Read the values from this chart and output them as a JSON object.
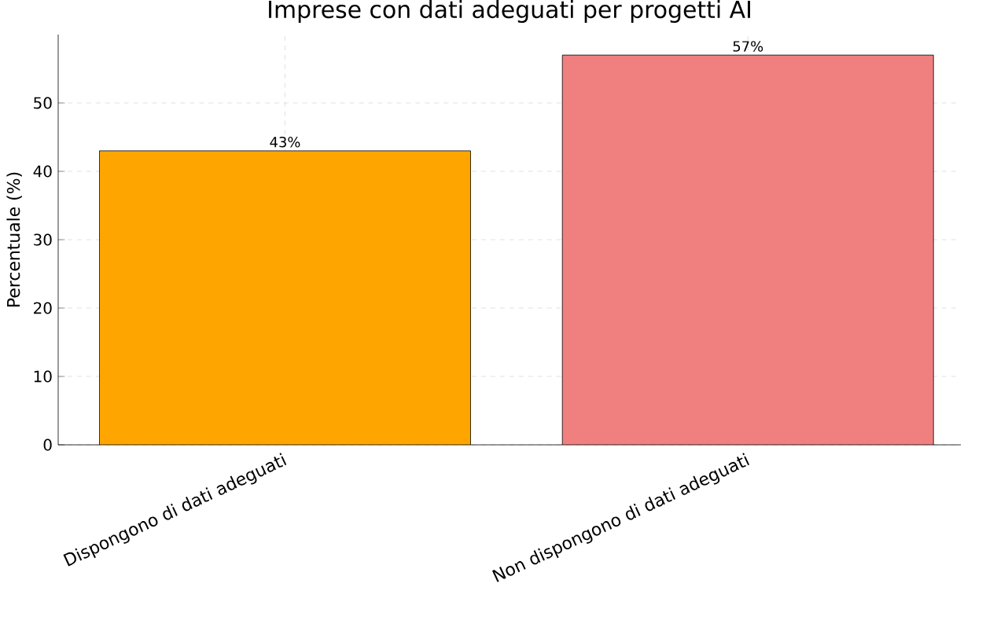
{
  "chart_data": {
    "type": "bar",
    "title": "Imprese con dati adeguati per progetti AI",
    "ylabel": "Percentuale (%)",
    "categories": [
      "Dispongono di dati adeguati",
      "Non dispongono di dati adeguati"
    ],
    "values": [
      43,
      57
    ],
    "colors": [
      "#ffa500",
      "#f08080"
    ],
    "value_labels": [
      "43%",
      "57%"
    ],
    "ylim": [
      0,
      60
    ],
    "yticks": [
      0,
      10,
      20,
      30,
      40,
      50
    ],
    "grid": true
  }
}
